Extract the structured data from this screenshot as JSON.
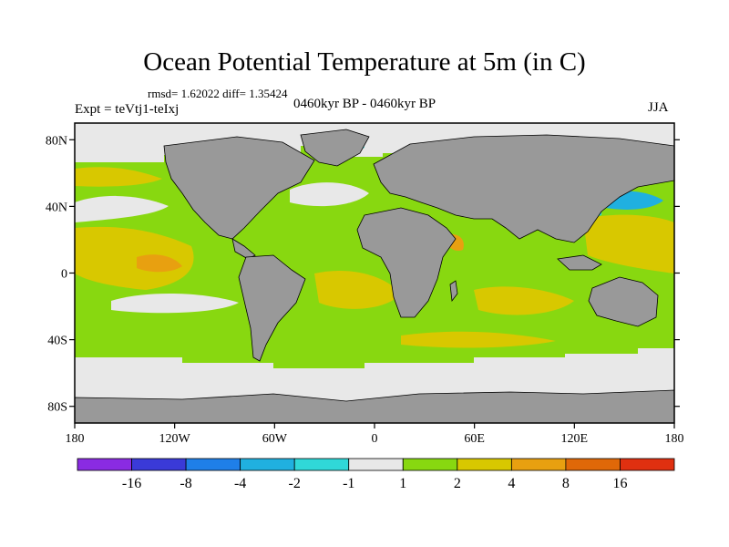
{
  "title": "Ocean Potential Temperature at 5m (in C)",
  "stats": "rmsd= 1.62022 diff= 1.35424",
  "expt": "Expt = teVtj1-teIxj",
  "period": "0460kyr BP - 0460kyr BP",
  "season": "JJA",
  "lat_labels": [
    {
      "value": 80,
      "label": "80N"
    },
    {
      "value": 40,
      "label": "40N"
    },
    {
      "value": 0,
      "label": "0"
    },
    {
      "value": -40,
      "label": "40S"
    },
    {
      "value": -80,
      "label": "80S"
    }
  ],
  "lon_labels": [
    {
      "value": -180,
      "label": "180"
    },
    {
      "value": -120,
      "label": "120W"
    },
    {
      "value": -60,
      "label": "60W"
    },
    {
      "value": 0,
      "label": "0"
    },
    {
      "value": 60,
      "label": "60E"
    },
    {
      "value": 120,
      "label": "120E"
    },
    {
      "value": 180,
      "label": "180"
    }
  ],
  "colorbar": {
    "colors": [
      "#8a2be2",
      "#3a3ad8",
      "#1f7fe8",
      "#20b0e0",
      "#30d8d8",
      "#e8e8e8",
      "#88d810",
      "#d8c800",
      "#e8a010",
      "#e06808",
      "#e03010"
    ],
    "labels": [
      "-16",
      "-8",
      "-4",
      "-2",
      "-1",
      "1",
      "2",
      "4",
      "8",
      "16"
    ]
  },
  "colors": {
    "land": "#999999",
    "ice": "#e8e8e8",
    "green": "#88d810",
    "yellow": "#d8c800",
    "orange": "#e8a010",
    "cyan": "#30d8d8",
    "lightblue": "#20b0e0",
    "blue": "#1f7fe8"
  }
}
